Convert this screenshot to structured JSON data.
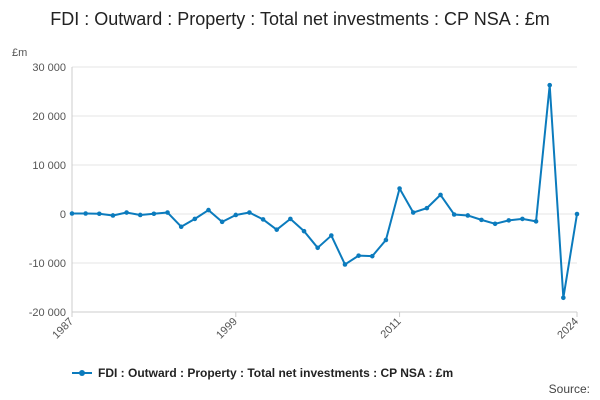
{
  "colors": {
    "series": "#0b7bbd",
    "grid": "#e6e6e6",
    "axis": "#cccccc",
    "text": "#555555"
  },
  "chart_data": {
    "type": "line",
    "title": "FDI : Outward : Property : Total net investments : CP NSA : £m",
    "ylabel": "£m",
    "xlabel": "",
    "ylim": [
      -20000,
      30000
    ],
    "yticks": [
      -20000,
      -10000,
      0,
      10000,
      20000,
      30000
    ],
    "ytick_labels": [
      "-20 000",
      "-10 000",
      "0",
      "10 000",
      "20 000",
      "30 000"
    ],
    "xlim": [
      1987,
      2024
    ],
    "xticks": [
      1987,
      1999,
      2011,
      2024
    ],
    "xtick_labels": [
      "1987",
      "1999",
      "2011",
      "2024"
    ],
    "grid": true,
    "legend_position": "bottom",
    "series": [
      {
        "name": "FDI : Outward : Property : Total net investments : CP NSA : £m",
        "x": [
          1987,
          1988,
          1989,
          1990,
          1991,
          1992,
          1993,
          1994,
          1995,
          1996,
          1997,
          1998,
          1999,
          2000,
          2001,
          2002,
          2003,
          2004,
          2005,
          2006,
          2007,
          2008,
          2009,
          2010,
          2011,
          2012,
          2013,
          2014,
          2015,
          2016,
          2017,
          2018,
          2019,
          2020,
          2021,
          2022,
          2023,
          2024
        ],
        "values": [
          100,
          100,
          50,
          -300,
          300,
          -200,
          50,
          300,
          -2600,
          -1000,
          800,
          -1600,
          -200,
          300,
          -1100,
          -3200,
          -1000,
          -3500,
          -6900,
          -4400,
          -10300,
          -8500,
          -8600,
          -5300,
          5200,
          300,
          1200,
          3900,
          -100,
          -300,
          -1200,
          -2000,
          -1300,
          -1000,
          -1500,
          26300,
          -17100,
          0
        ]
      }
    ]
  },
  "source_label": "Source:"
}
